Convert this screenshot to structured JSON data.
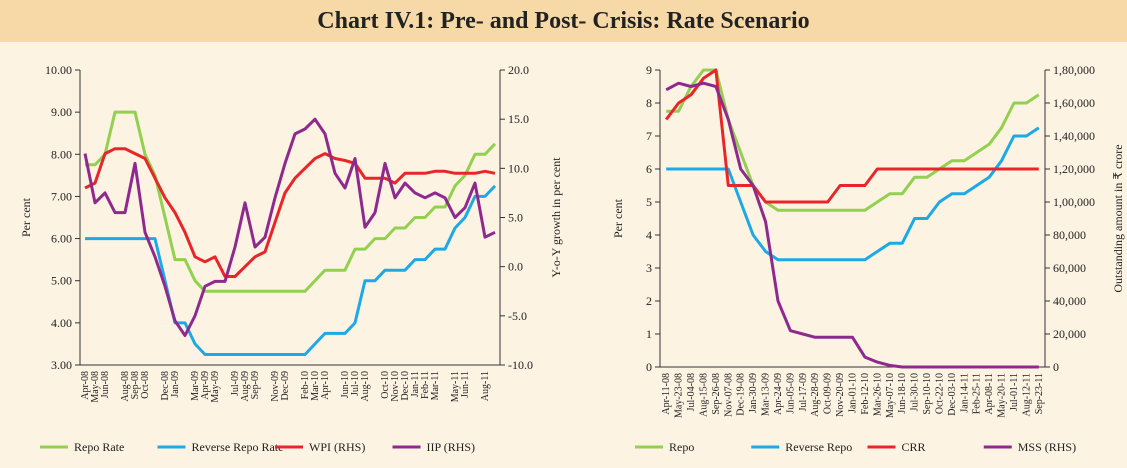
{
  "title": "Chart IV.1: Pre- and Post- Crisis: Rate Scenario",
  "chart_data": [
    {
      "type": "line",
      "ylabel": "Per cent",
      "y2label": "Y-o-Y growth in per cent",
      "legend": "bottom",
      "categories": [
        "Apr-08",
        "May-08",
        "Jun-08",
        null,
        "Aug-08",
        "Sep-08",
        "Oct-08",
        null,
        "Dec-08",
        "Jan-09",
        null,
        "Mar-09",
        "Apr-09",
        "May-09",
        null,
        "Jul-09",
        "Aug-09",
        "Sep-09",
        null,
        "Nov-09",
        "Dec-09",
        null,
        "Feb-10",
        "Mar-10",
        "Apr-10",
        null,
        "Jun-10",
        "Jul-10",
        "Aug-10",
        null,
        "Oct-10",
        "Nov-10",
        "Dec-10",
        "Jan-11",
        "Feb-11",
        "Mar-11",
        null,
        "May-11",
        "Jun-11",
        null,
        "Aug-11",
        null
      ],
      "ylim": [
        3,
        10
      ],
      "yticks": [
        {
          "value": 3,
          "label": "3.00"
        },
        {
          "value": 4,
          "label": "4.00"
        },
        {
          "value": 5,
          "label": "5.00"
        },
        {
          "value": 6,
          "label": "6.00"
        },
        {
          "value": 7,
          "label": "7.00"
        },
        {
          "value": 8,
          "label": "8.00"
        },
        {
          "value": 9,
          "label": "9.00"
        },
        {
          "value": 10,
          "label": "10.00"
        }
      ],
      "y2lim": [
        -10,
        20
      ],
      "y2ticks": [
        {
          "value": -10,
          "label": "-10.0"
        },
        {
          "value": -5,
          "label": "-5.0"
        },
        {
          "value": 0,
          "label": "0.0"
        },
        {
          "value": 5,
          "label": "5.0"
        },
        {
          "value": 10,
          "label": "10.0"
        },
        {
          "value": 15,
          "label": "15.0"
        },
        {
          "value": 20,
          "label": "20.0"
        }
      ],
      "series": [
        {
          "name": "Repo Rate",
          "color": "#92d050",
          "values": [
            7.75,
            7.75,
            8.0,
            9.0,
            9.0,
            9.0,
            8.0,
            7.5,
            6.5,
            5.5,
            5.5,
            5.0,
            4.75,
            4.75,
            4.75,
            4.75,
            4.75,
            4.75,
            4.75,
            4.75,
            4.75,
            4.75,
            4.75,
            5.0,
            5.25,
            5.25,
            5.25,
            5.75,
            5.75,
            6.0,
            6.0,
            6.25,
            6.25,
            6.5,
            6.5,
            6.75,
            6.75,
            7.25,
            7.5,
            8.0,
            8.0,
            8.25
          ]
        },
        {
          "name": "Reverse Repo Rate",
          "color": "#1ca9e6",
          "values": [
            6.0,
            6.0,
            6.0,
            6.0,
            6.0,
            6.0,
            6.0,
            6.0,
            5.0,
            4.0,
            4.0,
            3.5,
            3.25,
            3.25,
            3.25,
            3.25,
            3.25,
            3.25,
            3.25,
            3.25,
            3.25,
            3.25,
            3.25,
            3.5,
            3.75,
            3.75,
            3.75,
            4.0,
            5.0,
            5.0,
            5.25,
            5.25,
            5.25,
            5.5,
            5.5,
            5.75,
            5.75,
            6.25,
            6.5,
            7.0,
            7.0,
            7.25
          ]
        },
        {
          "name": "WPI (RHS)",
          "color": "#e8262a",
          "axis": "y2",
          "values": [
            8.0,
            8.5,
            11.5,
            12.0,
            12.0,
            11.5,
            11.0,
            9.0,
            7.0,
            5.5,
            3.5,
            1.0,
            0.5,
            1.0,
            -1.0,
            -1.0,
            0.0,
            1.0,
            1.5,
            4.5,
            7.5,
            9.0,
            10.0,
            11.0,
            11.5,
            11.0,
            10.8,
            10.5,
            9.0,
            9.0,
            9.0,
            8.5,
            9.5,
            9.5,
            9.5,
            9.7,
            9.7,
            9.5,
            9.5,
            9.5,
            9.7,
            9.5
          ]
        },
        {
          "name": "IIP (RHS)",
          "color": "#8e2a8e",
          "axis": "y2",
          "values": [
            11.5,
            6.5,
            7.5,
            5.5,
            5.5,
            10.5,
            3.5,
            1.0,
            -2.0,
            -5.5,
            -7.0,
            -5.0,
            -2.0,
            -1.5,
            -1.5,
            2.0,
            6.5,
            2.0,
            3.0,
            7.0,
            10.5,
            13.5,
            14.0,
            15.0,
            13.5,
            9.5,
            8.0,
            11.0,
            4.0,
            5.5,
            10.5,
            7.0,
            8.5,
            7.5,
            7.0,
            7.5,
            7.0,
            5.0,
            6.0,
            8.5,
            3.0,
            3.5
          ]
        }
      ]
    },
    {
      "type": "line",
      "ylabel": "Per cent",
      "y2label": "Outstanding amount in ₹ crore",
      "legend": "bottom",
      "categories": [
        "Apr-11-08",
        "May-23-08",
        "Jul-04-08",
        "Aug-15-08",
        "Sep-26-08",
        "Nov-07-08",
        "Dec-19-08",
        "Jan-30-09",
        "Mar-13-09",
        "Apr-24-09",
        "Jun-05-09",
        "Jul-17-09",
        "Aug-28-09",
        "Oct-09-09",
        "Nov-20-09",
        "Jan-01-10",
        "Feb-12-10",
        "Mar-26-10",
        "May-07-10",
        "Jun-18-10",
        "Jul-30-10",
        "Sep-10-10",
        "Oct-22-10",
        "Dec-03-10",
        "Jan-14-11",
        "Feb-25-11",
        "Apr-08-11",
        "May-20-11",
        "Jul-01-11",
        "Aug-12-11",
        "Sep-23-11"
      ],
      "ylim": [
        0,
        9
      ],
      "yticks": [
        0,
        1,
        2,
        3,
        4,
        5,
        6,
        7,
        8,
        9
      ],
      "y2lim": [
        0,
        180000
      ],
      "y2ticks": [
        0,
        {
          "value": 20000,
          "label": "20,000"
        },
        {
          "value": 40000,
          "label": "40,000"
        },
        {
          "value": 60000,
          "label": "60,000"
        },
        {
          "value": 80000,
          "label": "80,000"
        },
        {
          "value": 100000,
          "label": "1,00,000"
        },
        {
          "value": 120000,
          "label": "1,20,000"
        },
        {
          "value": 140000,
          "label": "1,40,000"
        },
        {
          "value": 160000,
          "label": "1,60,000"
        },
        {
          "value": 180000,
          "label": "1,80,000"
        }
      ],
      "series": [
        {
          "name": "Repo",
          "color": "#92d050",
          "values": [
            7.75,
            7.75,
            8.5,
            9.0,
            9.0,
            7.5,
            6.5,
            5.5,
            5.0,
            4.75,
            4.75,
            4.75,
            4.75,
            4.75,
            4.75,
            4.75,
            4.75,
            5.0,
            5.25,
            5.25,
            5.75,
            5.75,
            6.0,
            6.25,
            6.25,
            6.5,
            6.75,
            7.25,
            8.0,
            8.0,
            8.25
          ]
        },
        {
          "name": "Reverse Repo",
          "color": "#1ca9e6",
          "values": [
            6.0,
            6.0,
            6.0,
            6.0,
            6.0,
            6.0,
            5.0,
            4.0,
            3.5,
            3.25,
            3.25,
            3.25,
            3.25,
            3.25,
            3.25,
            3.25,
            3.25,
            3.5,
            3.75,
            3.75,
            4.5,
            4.5,
            5.0,
            5.25,
            5.25,
            5.5,
            5.75,
            6.25,
            7.0,
            7.0,
            7.25
          ]
        },
        {
          "name": "CRR",
          "color": "#e8262a",
          "values": [
            7.5,
            8.0,
            8.25,
            8.75,
            9.0,
            5.5,
            5.5,
            5.5,
            5.0,
            5.0,
            5.0,
            5.0,
            5.0,
            5.0,
            5.5,
            5.5,
            5.5,
            6.0,
            6.0,
            6.0,
            6.0,
            6.0,
            6.0,
            6.0,
            6.0,
            6.0,
            6.0,
            6.0,
            6.0,
            6.0,
            6.0
          ]
        },
        {
          "name": "MSS (RHS)",
          "color": "#8e2a8e",
          "axis": "y2",
          "values": [
            168000,
            172000,
            170000,
            172000,
            170000,
            150000,
            120000,
            110000,
            88000,
            40000,
            22000,
            20000,
            18000,
            18000,
            18000,
            18000,
            6000,
            3000,
            1000,
            0,
            0,
            0,
            0,
            0,
            0,
            0,
            0,
            0,
            0,
            0,
            0
          ]
        }
      ]
    }
  ]
}
